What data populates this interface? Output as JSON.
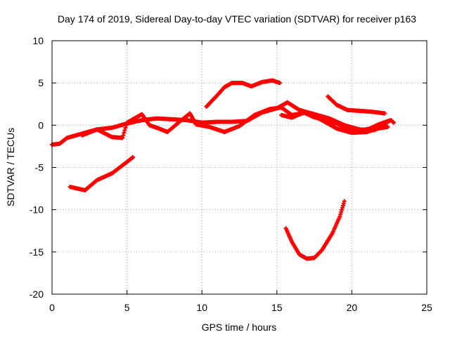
{
  "chart_data": {
    "type": "scatter",
    "title": "Day 174 of 2019, Sidereal Day-to-day VTEC variation (SDTVAR) for receiver p163",
    "xlabel": "GPS time / hours",
    "ylabel": "SDTVAR / TECUs",
    "xlim": [
      0,
      25
    ],
    "ylim": [
      -20,
      10
    ],
    "xticks": [
      0,
      5,
      10,
      15,
      20,
      25
    ],
    "yticks": [
      -20,
      -15,
      -10,
      -5,
      0,
      5,
      10
    ],
    "grid": true,
    "marker_color": "#ff0000",
    "series": [
      {
        "name": "s1",
        "points": [
          [
            0,
            -2.3
          ],
          [
            0.5,
            -2.2
          ],
          [
            1,
            -1.5
          ],
          [
            2,
            -1.0
          ],
          [
            3,
            -0.5
          ],
          [
            4,
            -0.3
          ],
          [
            5,
            0.2
          ],
          [
            6,
            0.6
          ],
          [
            7,
            0.8
          ],
          [
            8,
            0.7
          ],
          [
            9,
            0.6
          ],
          [
            10,
            0.3
          ],
          [
            11,
            0.4
          ],
          [
            12,
            0.4
          ],
          [
            13,
            0.5
          ],
          [
            14,
            1.5
          ],
          [
            15,
            2.0
          ],
          [
            15.7,
            2.7
          ],
          [
            16.5,
            1.8
          ],
          [
            17.5,
            1.3
          ],
          [
            18.5,
            0.8
          ],
          [
            19.5,
            0.0
          ],
          [
            20.5,
            -0.5
          ],
          [
            21.5,
            -0.6
          ],
          [
            22.5,
            0.5
          ]
        ]
      },
      {
        "name": "s2",
        "points": [
          [
            2,
            -1.2
          ],
          [
            3,
            -0.5
          ],
          [
            4,
            -1.4
          ],
          [
            4.7,
            -1.5
          ],
          [
            5,
            0.3
          ],
          [
            6,
            1.3
          ],
          [
            6.5,
            0.0
          ],
          [
            7,
            -0.3
          ],
          [
            7.7,
            -0.8
          ],
          [
            8.5,
            0.4
          ],
          [
            9.2,
            1.4
          ],
          [
            9.6,
            0.1
          ],
          [
            10.5,
            -0.2
          ],
          [
            11.5,
            -0.8
          ],
          [
            12.5,
            -0.1
          ],
          [
            13.5,
            1.2
          ],
          [
            14.5,
            1.9
          ],
          [
            15.3,
            2.1
          ],
          [
            16,
            1.2
          ],
          [
            17,
            1.5
          ],
          [
            18,
            0.6
          ],
          [
            19,
            -0.4
          ],
          [
            20,
            -0.9
          ],
          [
            21,
            -0.8
          ],
          [
            21.7,
            -0.4
          ],
          [
            22.4,
            -0.2
          ]
        ]
      },
      {
        "name": "s3",
        "points": [
          [
            1.2,
            -7.3
          ],
          [
            2.2,
            -7.7
          ],
          [
            3,
            -6.5
          ],
          [
            4,
            -5.7
          ],
          [
            5.4,
            -3.8
          ]
        ]
      },
      {
        "name": "s4",
        "points": [
          [
            10.3,
            2.2
          ],
          [
            11,
            3.5
          ],
          [
            11.5,
            4.5
          ],
          [
            12,
            5.0
          ],
          [
            12.7,
            5.0
          ],
          [
            13.3,
            4.6
          ],
          [
            14,
            5.1
          ],
          [
            14.7,
            5.3
          ],
          [
            15.2,
            5.0
          ]
        ]
      },
      {
        "name": "s5",
        "points": [
          [
            18.4,
            3.4
          ],
          [
            19,
            2.4
          ],
          [
            19.7,
            1.8
          ],
          [
            20.5,
            1.7
          ],
          [
            21.3,
            1.6
          ],
          [
            22.2,
            1.4
          ]
        ]
      },
      {
        "name": "s6",
        "points": [
          [
            15.6,
            -12.2
          ],
          [
            16,
            -13.8
          ],
          [
            16.5,
            -15.3
          ],
          [
            17,
            -15.8
          ],
          [
            17.5,
            -15.7
          ],
          [
            18,
            -14.8
          ],
          [
            18.7,
            -12.8
          ],
          [
            19.2,
            -10.8
          ],
          [
            19.5,
            -9.0
          ]
        ]
      },
      {
        "name": "s7",
        "points": [
          [
            15.3,
            1.2
          ],
          [
            16,
            0.9
          ],
          [
            16.8,
            1.5
          ],
          [
            17.4,
            1.0
          ],
          [
            18,
            0.7
          ],
          [
            19,
            0.2
          ],
          [
            19.8,
            -0.5
          ],
          [
            20.4,
            -0.7
          ],
          [
            21.2,
            -0.4
          ],
          [
            21.8,
            0.1
          ],
          [
            22.6,
            0.6
          ],
          [
            22.8,
            0.3
          ]
        ]
      }
    ]
  }
}
